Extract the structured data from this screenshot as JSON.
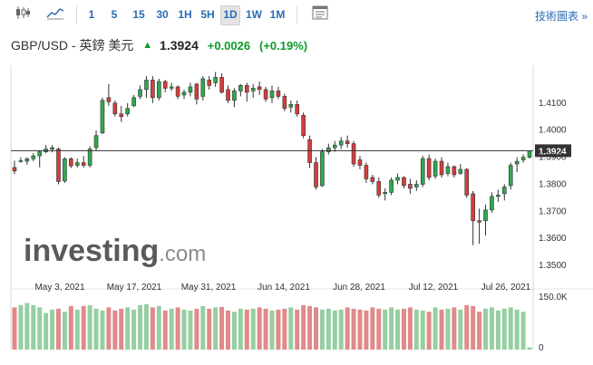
{
  "toolbar": {
    "chart_type_icons": [
      "candlestick-icon",
      "area-chart-icon"
    ],
    "timeframes": [
      "1",
      "5",
      "15",
      "30",
      "1H",
      "5H",
      "1D",
      "1W",
      "1M"
    ],
    "active_timeframe": "1D",
    "settings_icon": "toolbar-settings-icon",
    "technical_chart_label": "技術圖表 »"
  },
  "header": {
    "title": "GBP/USD - 英鎊 美元",
    "arrow": "▲",
    "price": "1.3924",
    "change": "+0.0026",
    "change_pct": "(+0.19%)"
  },
  "watermark": "investing.com",
  "colors": {
    "up": "#2fa84f",
    "down": "#d63c3c",
    "up_volume": "#96cfa2",
    "down_volume": "#e08a8a",
    "price_label_bg": "#333333"
  },
  "chart_data": {
    "type": "candlestick",
    "x_tick_labels": [
      "May 3, 2021",
      "May 17, 2021",
      "May 31, 2021",
      "Jun 14, 2021",
      "Jun 28, 2021",
      "Jul 12, 2021",
      "Jul 26, 2021"
    ],
    "y_tick_labels": [
      "1.4100",
      "1.4000",
      "1.3900",
      "1.3800",
      "1.3700",
      "1.3600",
      "1.3500"
    ],
    "ylim": [
      1.346,
      1.424
    ],
    "current_price": 1.3924,
    "current_price_label": "1.3924",
    "volume_labels": [
      "150.0K",
      "0"
    ],
    "volume_max": 150000,
    "candles": [
      [
        1.3862,
        1.3887,
        1.3849,
        1.3838
      ],
      [
        1.3887,
        1.39,
        1.3887,
        1.388
      ],
      [
        1.3885,
        1.39,
        1.3894,
        1.3872
      ],
      [
        1.3894,
        1.3915,
        1.3905,
        1.3885
      ],
      [
        1.3905,
        1.3925,
        1.392,
        1.3862
      ],
      [
        1.392,
        1.3945,
        1.393,
        1.3915
      ],
      [
        1.393,
        1.3945,
        1.3935,
        1.3918
      ],
      [
        1.393,
        1.3935,
        1.381,
        1.38
      ],
      [
        1.3812,
        1.39,
        1.3894,
        1.3805
      ],
      [
        1.3894,
        1.39,
        1.3868,
        1.386
      ],
      [
        1.387,
        1.3895,
        1.388,
        1.3862
      ],
      [
        1.388,
        1.3905,
        1.387,
        1.3862
      ],
      [
        1.387,
        1.394,
        1.393,
        1.3862
      ],
      [
        1.3935,
        1.4,
        1.398,
        1.3925
      ],
      [
        1.399,
        1.412,
        1.411,
        1.3985
      ],
      [
        1.412,
        1.417,
        1.4105,
        1.409
      ],
      [
        1.41,
        1.411,
        1.406,
        1.405
      ],
      [
        1.406,
        1.409,
        1.405,
        1.403
      ],
      [
        1.406,
        1.41,
        1.408,
        1.405
      ],
      [
        1.409,
        1.413,
        1.412,
        1.4085
      ],
      [
        1.4125,
        1.4165,
        1.415,
        1.4115
      ],
      [
        1.415,
        1.42,
        1.4185,
        1.412
      ],
      [
        1.4185,
        1.42,
        1.412,
        1.41
      ],
      [
        1.412,
        1.419,
        1.418,
        1.411
      ],
      [
        1.418,
        1.4185,
        1.4155,
        1.414
      ],
      [
        1.4155,
        1.4175,
        1.416,
        1.4145
      ],
      [
        1.416,
        1.4165,
        1.4125,
        1.4115
      ],
      [
        1.413,
        1.415,
        1.414,
        1.4115
      ],
      [
        1.414,
        1.4175,
        1.416,
        1.4125
      ],
      [
        1.417,
        1.4175,
        1.4115,
        1.4095
      ],
      [
        1.4125,
        1.42,
        1.419,
        1.411
      ],
      [
        1.4185,
        1.42,
        1.4165,
        1.415
      ],
      [
        1.4175,
        1.4215,
        1.4195,
        1.416
      ],
      [
        1.4195,
        1.421,
        1.414,
        1.4135
      ],
      [
        1.415,
        1.4165,
        1.411,
        1.41
      ],
      [
        1.411,
        1.4155,
        1.4145,
        1.4085
      ],
      [
        1.4145,
        1.417,
        1.4165,
        1.4125
      ],
      [
        1.4165,
        1.4175,
        1.414,
        1.4105
      ],
      [
        1.4145,
        1.417,
        1.4155,
        1.412
      ],
      [
        1.416,
        1.418,
        1.415,
        1.413
      ],
      [
        1.415,
        1.416,
        1.4115,
        1.4105
      ],
      [
        1.412,
        1.4165,
        1.4145,
        1.41
      ],
      [
        1.4145,
        1.416,
        1.4125,
        1.4115
      ],
      [
        1.4125,
        1.4135,
        1.408,
        1.407
      ],
      [
        1.4085,
        1.411,
        1.4095,
        1.4065
      ],
      [
        1.4095,
        1.411,
        1.406,
        1.405
      ],
      [
        1.4055,
        1.4065,
        1.398,
        1.397
      ],
      [
        1.3965,
        1.398,
        1.388,
        1.386
      ],
      [
        1.388,
        1.39,
        1.379,
        1.378
      ],
      [
        1.3795,
        1.393,
        1.392,
        1.379
      ],
      [
        1.392,
        1.395,
        1.3935,
        1.391
      ],
      [
        1.3935,
        1.396,
        1.3945,
        1.392
      ],
      [
        1.3945,
        1.3975,
        1.396,
        1.393
      ],
      [
        1.396,
        1.398,
        1.395,
        1.3935
      ],
      [
        1.395,
        1.396,
        1.3875,
        1.3865
      ],
      [
        1.389,
        1.3905,
        1.387,
        1.3855
      ],
      [
        1.387,
        1.388,
        1.382,
        1.3805
      ],
      [
        1.3825,
        1.3835,
        1.381,
        1.38
      ],
      [
        1.381,
        1.3825,
        1.376,
        1.375
      ],
      [
        1.3765,
        1.3785,
        1.377,
        1.374
      ],
      [
        1.377,
        1.3825,
        1.3815,
        1.376
      ],
      [
        1.3815,
        1.384,
        1.3825,
        1.38
      ],
      [
        1.3825,
        1.383,
        1.3795,
        1.3785
      ],
      [
        1.38,
        1.382,
        1.3785,
        1.3765
      ],
      [
        1.379,
        1.3815,
        1.38,
        1.3775
      ],
      [
        1.38,
        1.3905,
        1.3895,
        1.379
      ],
      [
        1.3895,
        1.391,
        1.3825,
        1.3815
      ],
      [
        1.383,
        1.3895,
        1.3885,
        1.382
      ],
      [
        1.3885,
        1.39,
        1.3835,
        1.3825
      ],
      [
        1.384,
        1.388,
        1.3865,
        1.383
      ],
      [
        1.3865,
        1.387,
        1.3835,
        1.3825
      ],
      [
        1.384,
        1.3875,
        1.3855,
        1.3835
      ],
      [
        1.3855,
        1.386,
        1.376,
        1.375
      ],
      [
        1.3765,
        1.3775,
        1.3665,
        1.3575
      ],
      [
        1.3665,
        1.371,
        1.366,
        1.358
      ],
      [
        1.3665,
        1.3725,
        1.3705,
        1.361
      ],
      [
        1.3705,
        1.377,
        1.3755,
        1.3695
      ],
      [
        1.3755,
        1.378,
        1.376,
        1.3735
      ],
      [
        1.3765,
        1.38,
        1.379,
        1.374
      ],
      [
        1.3795,
        1.388,
        1.387,
        1.378
      ],
      [
        1.3875,
        1.39,
        1.3885,
        1.3845
      ],
      [
        1.389,
        1.391,
        1.39,
        1.388
      ],
      [
        1.39,
        1.3925,
        1.3924,
        1.3895
      ]
    ],
    "volumes": [
      95,
      100,
      105,
      100,
      95,
      82,
      90,
      92,
      85,
      98,
      90,
      98,
      100,
      92,
      88,
      95,
      88,
      92,
      95,
      90,
      100,
      102,
      95,
      98,
      88,
      92,
      95,
      90,
      88,
      92,
      98,
      92,
      95,
      96,
      88,
      85,
      92,
      90,
      92,
      95,
      92,
      88,
      90,
      92,
      95,
      90,
      100,
      98,
      95,
      90,
      92,
      88,
      90,
      95,
      92,
      90,
      88,
      95,
      92,
      90,
      95,
      90,
      92,
      95,
      90,
      88,
      85,
      95,
      90,
      92,
      95,
      90,
      100,
      98,
      85,
      92,
      95,
      88,
      92,
      95,
      90,
      85,
      5
    ]
  }
}
